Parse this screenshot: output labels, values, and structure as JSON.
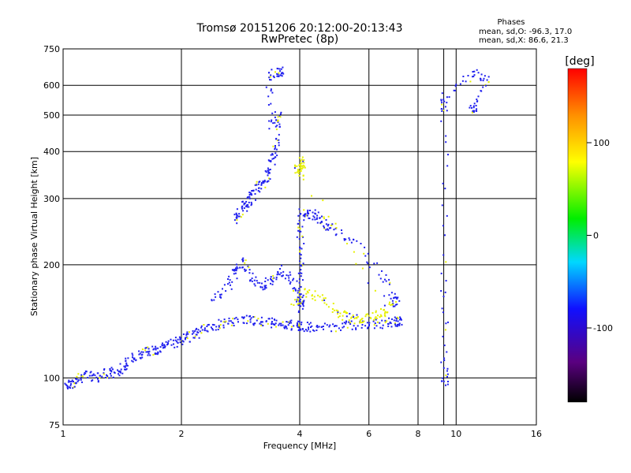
{
  "chart_data": {
    "type": "scatter",
    "title": "Tromsø 20151206 20:12:00-20:13:43",
    "subtitle": "RwPretec (8p)",
    "xlabel": "Frequency [MHz]",
    "ylabel": "Stationary phase Virtual Height [km]",
    "xscale": "log",
    "yscale": "log",
    "xlim": [
      1,
      16
    ],
    "ylim": [
      75,
      750
    ],
    "xticks": [
      1,
      2,
      4,
      6,
      8,
      10,
      16
    ],
    "yticks": [
      75,
      100,
      200,
      300,
      400,
      500,
      600,
      750
    ],
    "grid": true,
    "stats": {
      "heading": "Phases",
      "line1": "mean, sd,O:  -96.3, 17.0",
      "line2": "mean, sd,X:   86.6, 21.3"
    },
    "colorbar": {
      "label": "[deg]",
      "range": [
        -180,
        180
      ],
      "ticks": [
        -100,
        0,
        100
      ],
      "tick_labels": [
        "-100",
        "0",
        "100"
      ],
      "colormap": "rainbow (black-purple-blue-cyan-green-yellow-red)"
    },
    "traces": [
      {
        "name": "",
        "phase": -100,
        "points": [
          [
            1.0,
            96
          ],
          [
            1.05,
            97
          ],
          [
            1.08,
            99
          ],
          [
            1.12,
            102
          ],
          [
            1.2,
            101
          ],
          [
            1.28,
            103
          ],
          [
            1.35,
            104
          ],
          [
            1.42,
            108
          ],
          [
            1.5,
            113
          ],
          [
            1.58,
            116
          ],
          [
            1.65,
            118
          ],
          [
            1.72,
            119
          ],
          [
            1.8,
            122
          ],
          [
            1.9,
            124
          ],
          [
            2.0,
            127
          ],
          [
            2.1,
            130
          ],
          [
            2.2,
            133
          ],
          [
            2.35,
            137
          ],
          [
            2.5,
            140
          ],
          [
            2.7,
            142
          ],
          [
            2.9,
            143
          ],
          [
            3.1,
            142
          ],
          [
            3.3,
            141
          ],
          [
            3.5,
            140
          ],
          [
            3.7,
            139
          ],
          [
            3.9,
            138
          ],
          [
            4.0,
            138
          ],
          [
            4.3,
            137
          ],
          [
            4.7,
            137
          ],
          [
            5.2,
            138
          ],
          [
            5.8,
            139
          ],
          [
            6.3,
            140
          ],
          [
            6.8,
            141
          ],
          [
            7.1,
            142
          ]
        ]
      },
      {
        "name": "",
        "phase": -100,
        "points": [
          [
            2.4,
            160
          ],
          [
            2.6,
            175
          ],
          [
            2.75,
            195
          ],
          [
            2.85,
            205
          ],
          [
            3.0,
            185
          ],
          [
            3.2,
            175
          ],
          [
            3.4,
            185
          ],
          [
            3.6,
            195
          ],
          [
            3.8,
            180
          ],
          [
            4.0,
            160
          ]
        ]
      },
      {
        "name": "",
        "phase": -105,
        "points": [
          [
            2.7,
            265
          ],
          [
            2.8,
            275
          ],
          [
            2.9,
            290
          ],
          [
            3.0,
            300
          ],
          [
            3.1,
            320
          ],
          [
            3.2,
            330
          ],
          [
            3.3,
            350
          ],
          [
            3.4,
            380
          ],
          [
            3.5,
            420
          ],
          [
            3.55,
            500
          ],
          [
            3.4,
            470
          ],
          [
            3.3,
            650
          ],
          [
            3.55,
            655
          ]
        ]
      },
      {
        "name": "",
        "phase": -100,
        "points": [
          [
            4.0,
            150
          ],
          [
            4.0,
            175
          ],
          [
            4.0,
            205
          ],
          [
            4.0,
            240
          ],
          [
            4.02,
            275
          ],
          [
            4.2,
            275
          ],
          [
            4.4,
            270
          ],
          [
            4.6,
            260
          ],
          [
            4.8,
            250
          ],
          [
            5.5,
            230
          ],
          [
            6.5,
            190
          ],
          [
            7.0,
            160
          ]
        ]
      },
      {
        "name": "",
        "phase": 95,
        "points": [
          [
            3.8,
            160
          ],
          [
            4.1,
            170
          ],
          [
            4.5,
            165
          ],
          [
            5.0,
            150
          ],
          [
            5.3,
            145
          ],
          [
            5.6,
            144
          ],
          [
            6.0,
            145
          ],
          [
            6.5,
            150
          ],
          [
            6.8,
            155
          ],
          [
            4.0,
            350
          ],
          [
            4.05,
            380
          ],
          [
            3.95,
            360
          ]
        ]
      },
      {
        "name": "",
        "phase": -100,
        "points": [
          [
            9.3,
            95
          ],
          [
            9.3,
            110
          ],
          [
            9.3,
            190
          ],
          [
            9.3,
            520
          ],
          [
            9.3,
            560
          ],
          [
            11.0,
            650
          ],
          [
            12.0,
            630
          ],
          [
            11.0,
            520
          ]
        ]
      }
    ]
  }
}
